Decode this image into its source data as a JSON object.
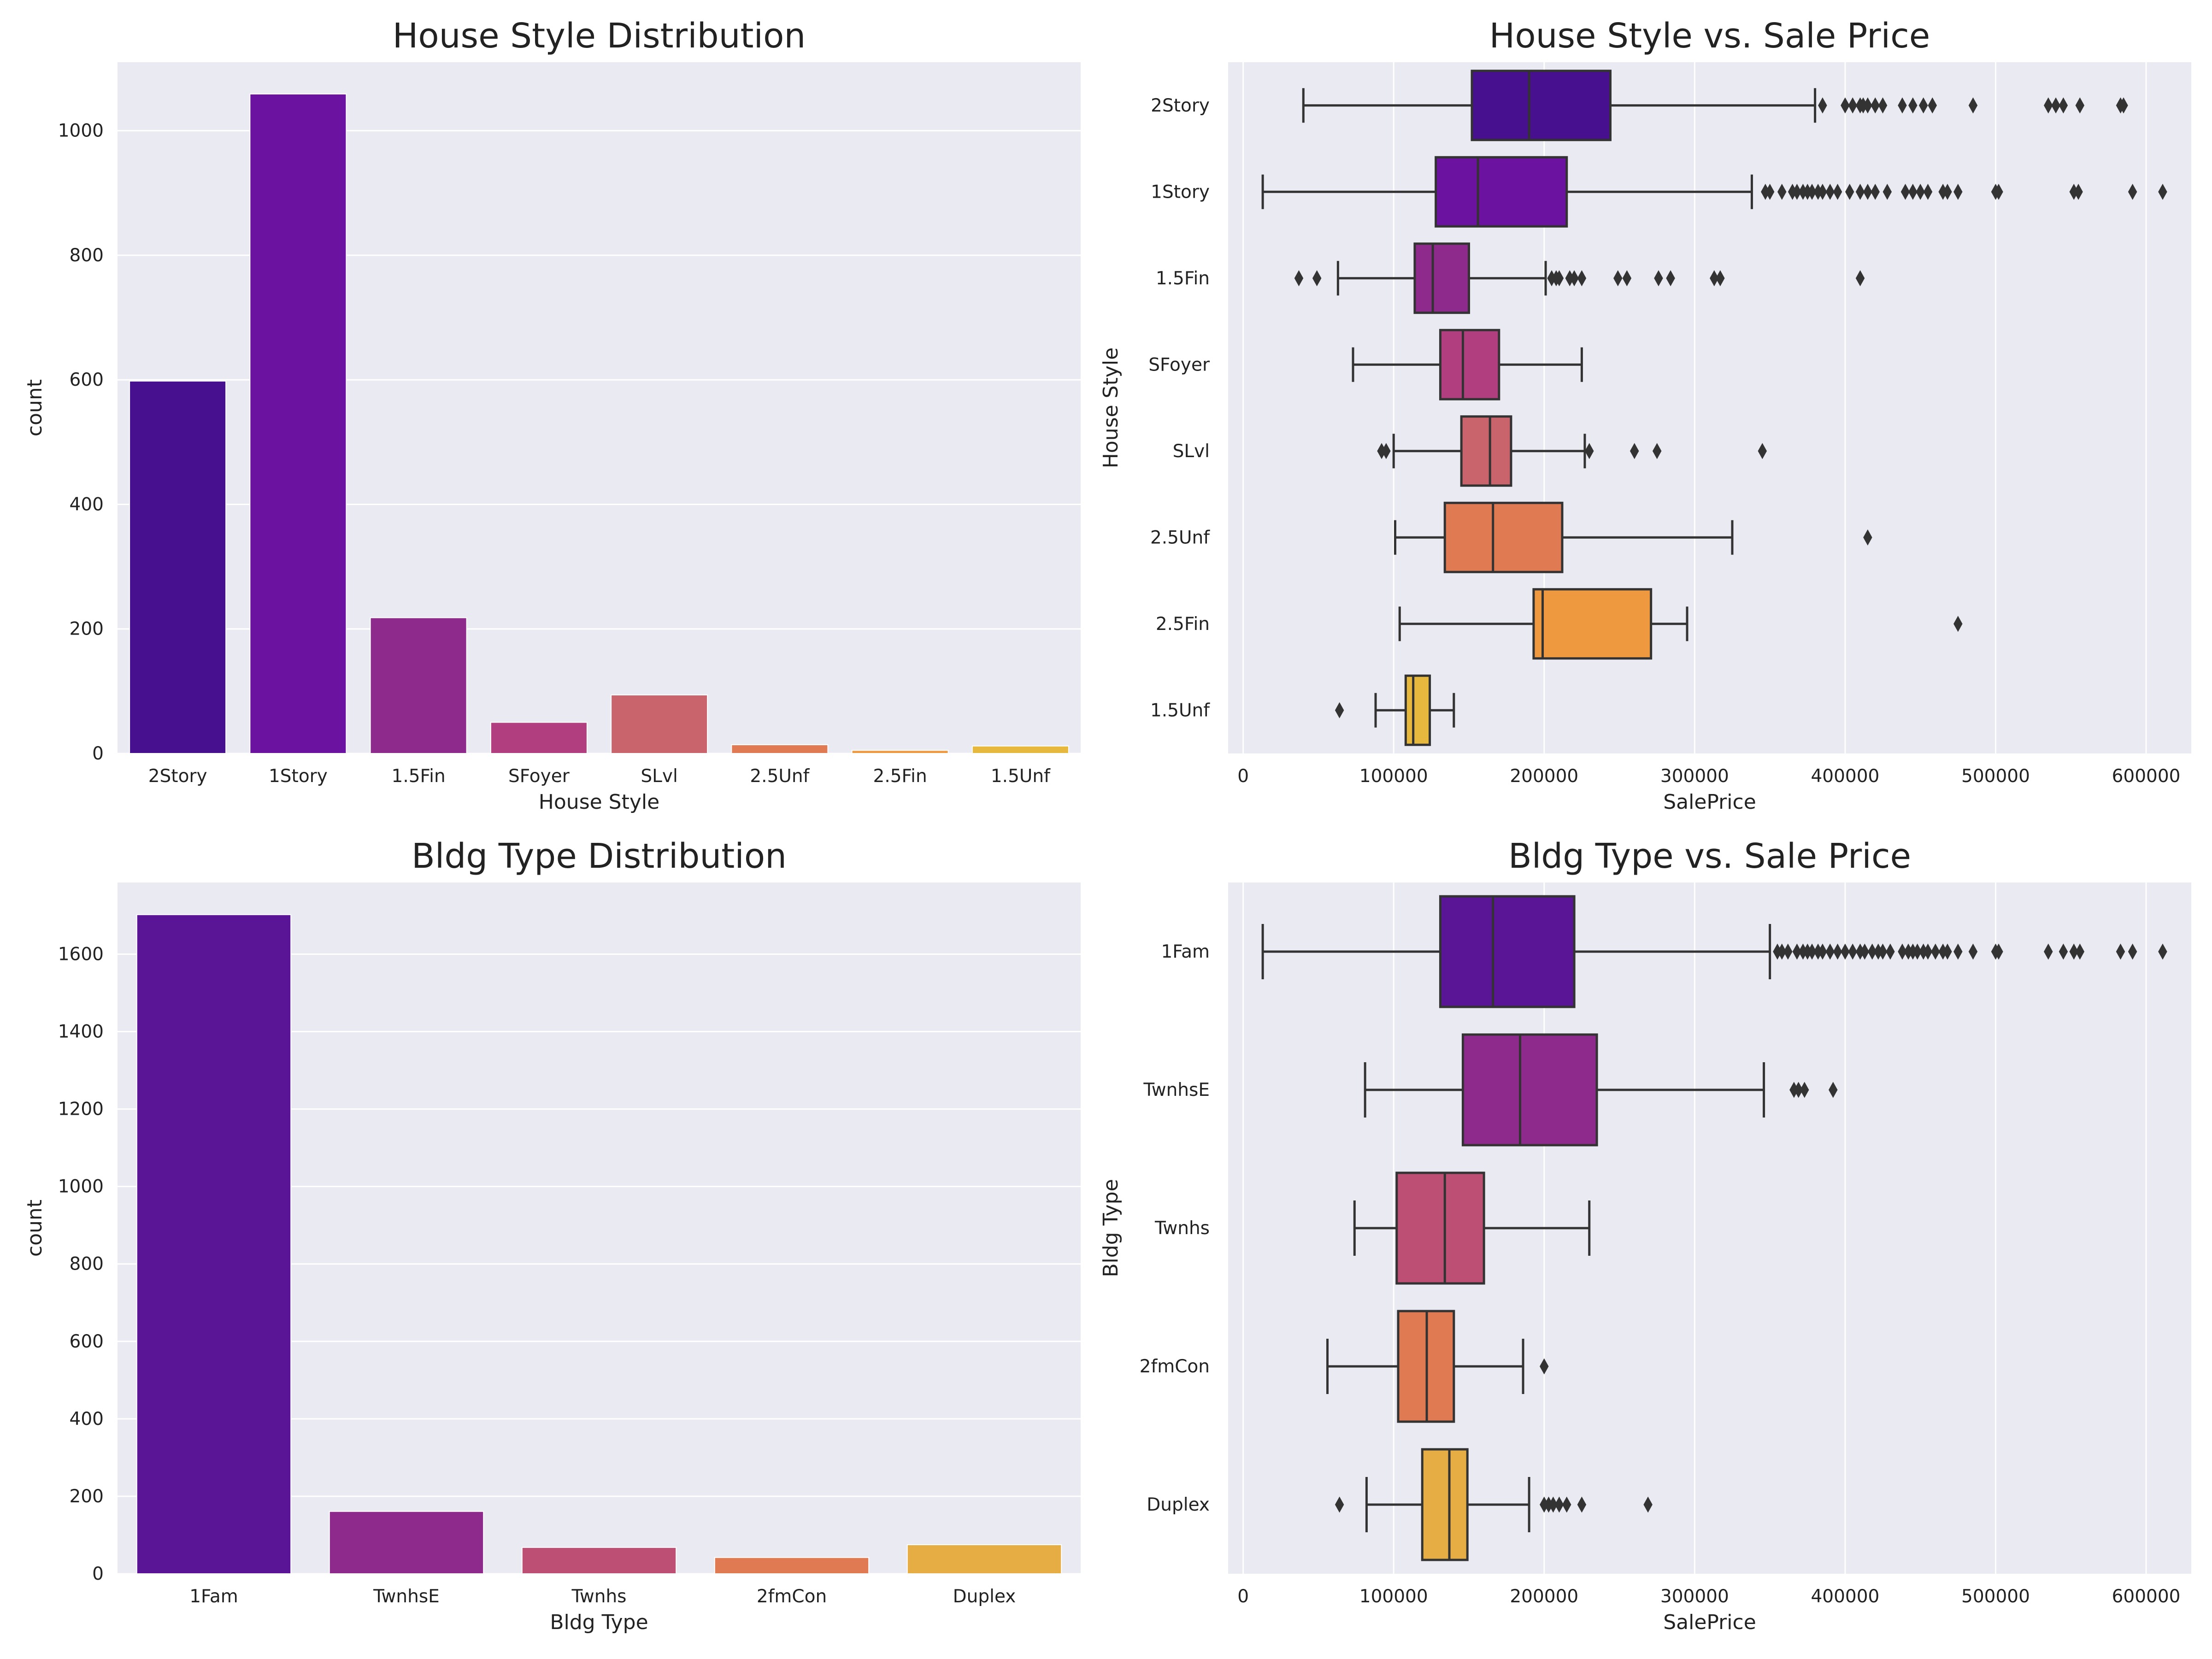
{
  "colors": {
    "background": "#eaeaf2",
    "grid": "#ffffff",
    "house_style_palette": [
      "#46108f",
      "#6c12a0",
      "#8e2a8c",
      "#b13f7f",
      "#c9646d",
      "#e07a52",
      "#ee9840",
      "#e6b83d"
    ],
    "bldg_type_palette": [
      "#5a1596",
      "#8e2a8c",
      "#bd4f75",
      "#e07a52",
      "#e6ad45"
    ]
  },
  "chart_data": [
    {
      "id": "house-style-count",
      "type": "bar",
      "title": "House Style Distribution",
      "xlabel": "House Style",
      "ylabel": "count",
      "categories": [
        "2Story",
        "1Story",
        "1.5Fin",
        "SFoyer",
        "SLvl",
        "2.5Unf",
        "2.5Fin",
        "1.5Unf"
      ],
      "values": [
        598,
        1059,
        218,
        50,
        94,
        14,
        5,
        12
      ],
      "ylim": [
        0,
        1110
      ],
      "yticks": [
        0,
        200,
        400,
        600,
        800,
        1000
      ],
      "grid": "horizontal"
    },
    {
      "id": "house-style-price",
      "type": "box",
      "orientation": "horizontal",
      "title": "House Style vs. Sale Price",
      "xlabel": "SalePrice",
      "ylabel": "House Style",
      "categories": [
        "2Story",
        "1Story",
        "1.5Fin",
        "SFoyer",
        "SLvl",
        "2.5Unf",
        "2.5Fin",
        "1.5Unf"
      ],
      "xlim": [
        -10000,
        630000
      ],
      "xticks": [
        0,
        100000,
        200000,
        300000,
        400000,
        500000,
        600000
      ],
      "grid": "vertical",
      "boxes": [
        {
          "category": "2Story",
          "whisker_low": 40000,
          "q1": 152000,
          "median": 190000,
          "q3": 244000,
          "whisker_high": 380000,
          "outliers": [
            385000,
            400000,
            405000,
            410000,
            412000,
            415000,
            420000,
            425000,
            438000,
            445000,
            452000,
            458000,
            485000,
            535000,
            540000,
            545000,
            556000,
            583000,
            585000
          ]
        },
        {
          "category": "1Story",
          "whisker_low": 13000,
          "q1": 128000,
          "median": 156000,
          "q3": 215000,
          "whisker_high": 338000,
          "outliers": [
            347000,
            350000,
            358000,
            365000,
            368000,
            372000,
            375000,
            378000,
            382000,
            385000,
            390000,
            395000,
            403000,
            410000,
            415000,
            420000,
            428000,
            440000,
            445000,
            450000,
            455000,
            465000,
            468000,
            475000,
            500000,
            502000,
            552000,
            555000,
            591000,
            611000
          ]
        },
        {
          "category": "1.5Fin",
          "whisker_low": 63000,
          "q1": 114000,
          "median": 126000,
          "q3": 150000,
          "whisker_high": 201000,
          "outliers": [
            37000,
            49000,
            205000,
            208000,
            210000,
            217000,
            220000,
            225000,
            249000,
            255000,
            276000,
            284000,
            313000,
            317000,
            410000
          ]
        },
        {
          "category": "SFoyer",
          "whisker_low": 73000,
          "q1": 131000,
          "median": 146000,
          "q3": 170000,
          "whisker_high": 225000,
          "outliers": []
        },
        {
          "category": "SLvl",
          "whisker_low": 100000,
          "q1": 145000,
          "median": 164000,
          "q3": 178000,
          "whisker_high": 227000,
          "outliers": [
            92000,
            95000,
            230000,
            260000,
            275000,
            345000
          ]
        },
        {
          "category": "2.5Unf",
          "whisker_low": 101000,
          "q1": 134000,
          "median": 166000,
          "q3": 212000,
          "whisker_high": 325000,
          "outliers": [
            415000
          ]
        },
        {
          "category": "2.5Fin",
          "whisker_low": 104000,
          "q1": 193000,
          "median": 199000,
          "q3": 271000,
          "whisker_high": 295000,
          "outliers": [
            475000
          ]
        },
        {
          "category": "1.5Unf",
          "whisker_low": 88000,
          "q1": 108000,
          "median": 113000,
          "q3": 124000,
          "whisker_high": 140000,
          "outliers": [
            64000
          ]
        }
      ]
    },
    {
      "id": "bldg-type-count",
      "type": "bar",
      "title": "Bldg Type Distribution",
      "xlabel": "Bldg Type",
      "ylabel": "count",
      "categories": [
        "1Fam",
        "TwnhsE",
        "Twnhs",
        "2fmCon",
        "Duplex"
      ],
      "values": [
        1702,
        161,
        68,
        42,
        75
      ],
      "ylim": [
        0,
        1785
      ],
      "yticks": [
        0,
        200,
        400,
        600,
        800,
        1000,
        1200,
        1400,
        1600
      ],
      "grid": "horizontal"
    },
    {
      "id": "bldg-type-price",
      "type": "box",
      "orientation": "horizontal",
      "title": "Bldg Type vs. Sale Price",
      "xlabel": "SalePrice",
      "ylabel": "Bldg Type",
      "categories": [
        "1Fam",
        "TwnhsE",
        "Twnhs",
        "2fmCon",
        "Duplex"
      ],
      "xlim": [
        -10000,
        630000
      ],
      "xticks": [
        0,
        100000,
        200000,
        300000,
        400000,
        500000,
        600000
      ],
      "grid": "vertical",
      "boxes": [
        {
          "category": "1Fam",
          "whisker_low": 13000,
          "q1": 131000,
          "median": 166000,
          "q3": 220000,
          "whisker_high": 350000,
          "outliers": [
            355000,
            358000,
            362000,
            368000,
            372000,
            375000,
            378000,
            382000,
            385000,
            390000,
            395000,
            400000,
            405000,
            410000,
            413000,
            418000,
            422000,
            425000,
            430000,
            438000,
            442000,
            445000,
            448000,
            452000,
            455000,
            460000,
            465000,
            468000,
            475000,
            485000,
            500000,
            502000,
            535000,
            545000,
            552000,
            556000,
            583000,
            591000,
            611000
          ]
        },
        {
          "category": "TwnhsE",
          "whisker_low": 81000,
          "q1": 146000,
          "median": 184000,
          "q3": 235000,
          "whisker_high": 346000,
          "outliers": [
            366000,
            369000,
            373000,
            392000
          ]
        },
        {
          "category": "Twnhs",
          "whisker_low": 74000,
          "q1": 102000,
          "median": 134000,
          "q3": 160000,
          "whisker_high": 230000,
          "outliers": []
        },
        {
          "category": "2fmCon",
          "whisker_low": 56000,
          "q1": 103000,
          "median": 122000,
          "q3": 140000,
          "whisker_high": 186000,
          "outliers": [
            200000
          ]
        },
        {
          "category": "Duplex",
          "whisker_low": 82000,
          "q1": 119000,
          "median": 137000,
          "q3": 149000,
          "whisker_high": 190000,
          "outliers": [
            64000,
            200000,
            203000,
            206000,
            210000,
            215000,
            225000,
            269000
          ]
        }
      ]
    }
  ]
}
